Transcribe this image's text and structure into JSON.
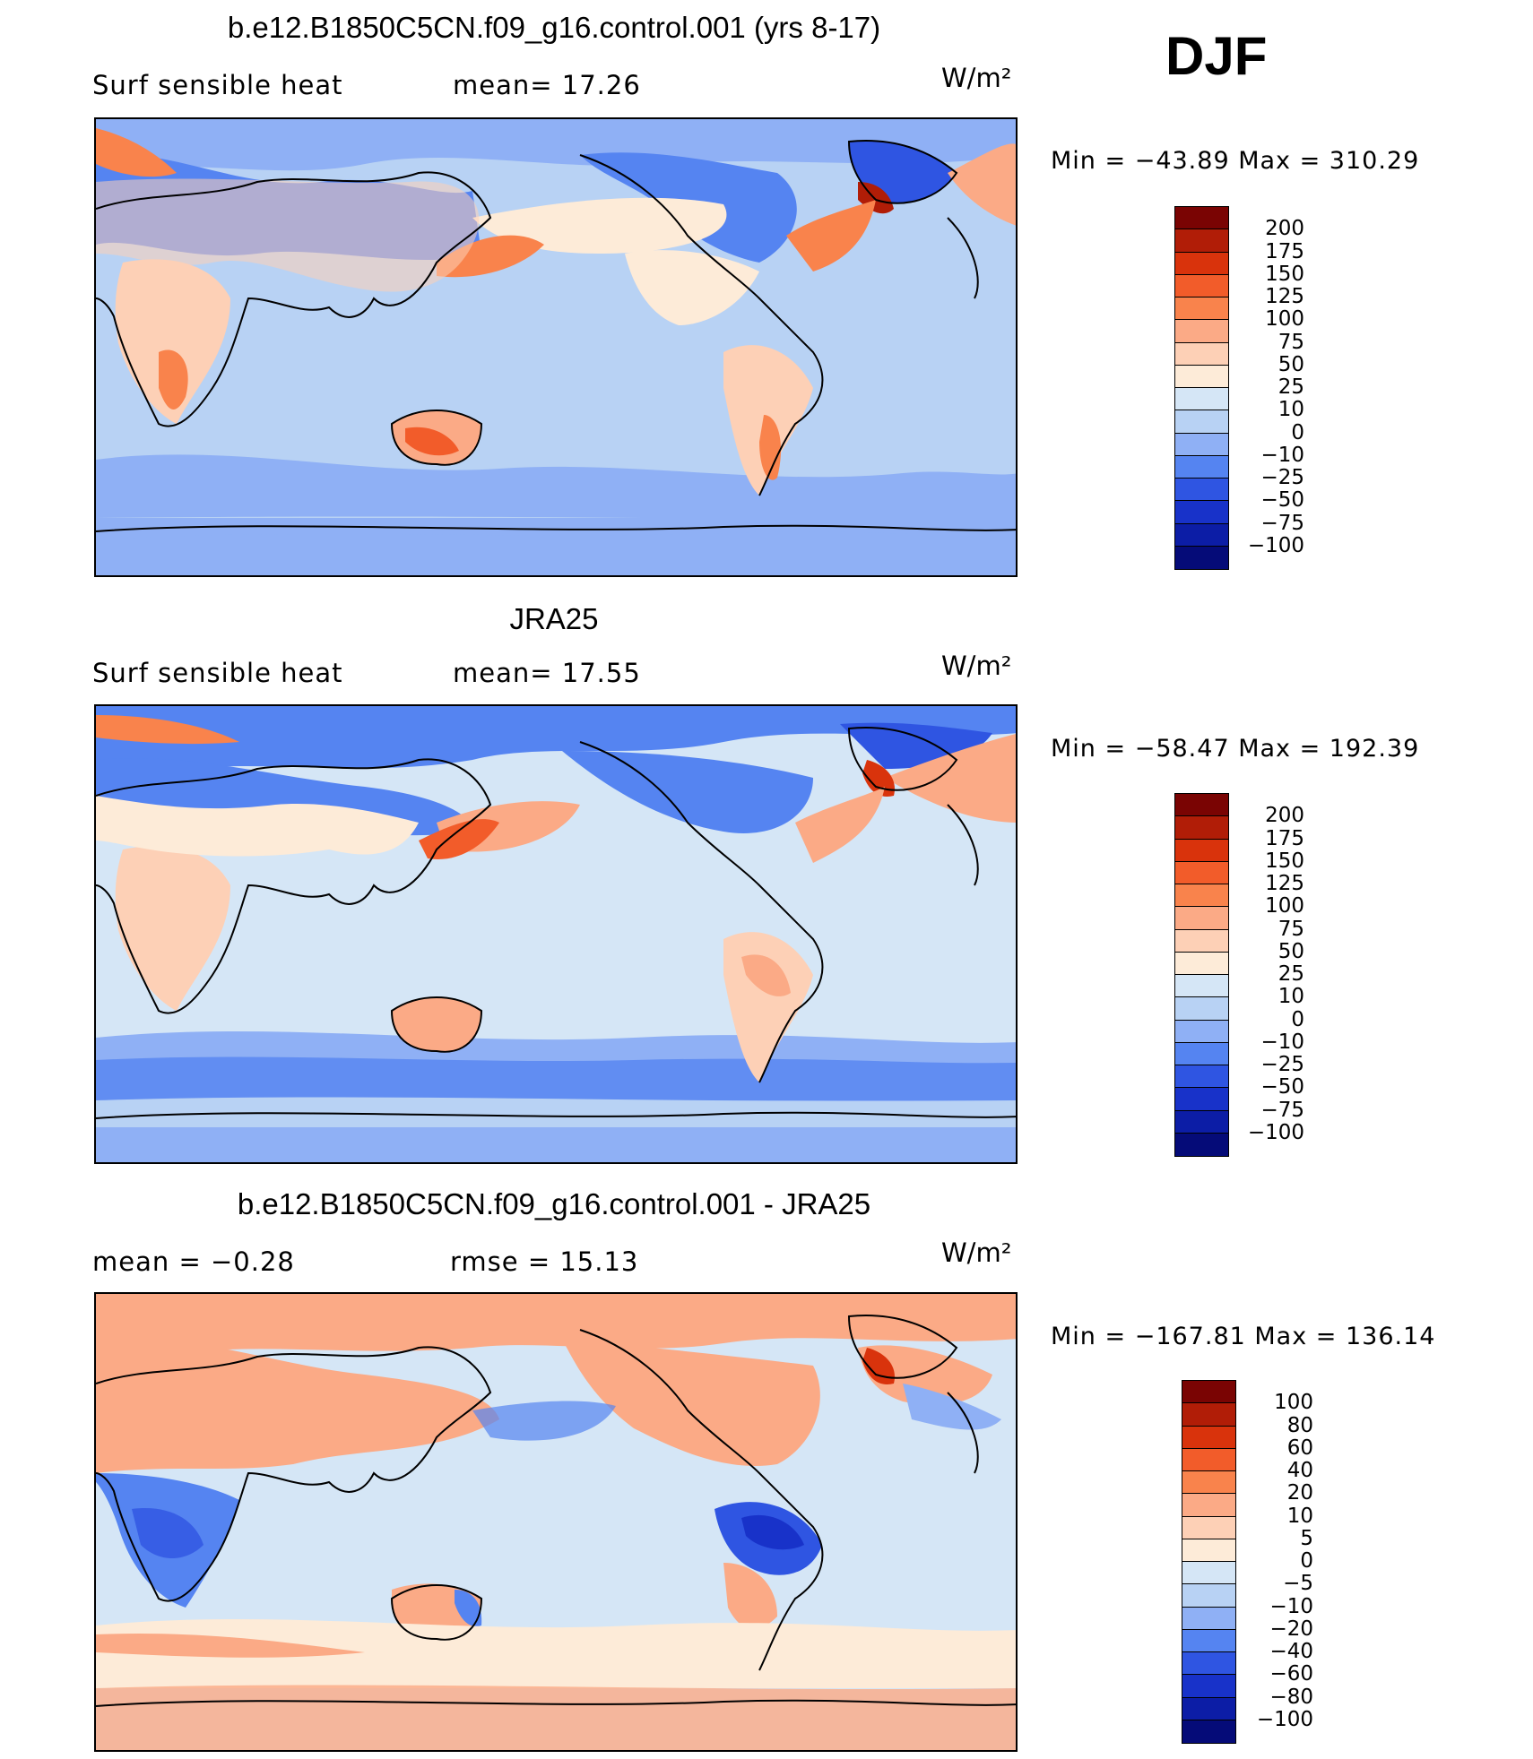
{
  "season": "DJF",
  "panels": [
    {
      "title": "b.e12.B1850C5CN.f09_g16.control.001 (yrs 8-17)",
      "left_label": "Surf  sensible  heat",
      "mid_label": "mean=   17.26",
      "units": "W/m²",
      "minmax": "Min  =  −43.89  Max  =  310.29",
      "colorbar": {
        "labels": [
          "200",
          "175",
          "150",
          "125",
          "100",
          "75",
          "50",
          "25",
          "10",
          "0",
          "−10",
          "−25",
          "−50",
          "−75",
          "−100"
        ],
        "colors": [
          "#7a0403",
          "#b11d07",
          "#d9330c",
          "#f25c2a",
          "#f9834c",
          "#fbaa86",
          "#fdd0b6",
          "#fdebd8",
          "#d5e6f6",
          "#b8d2f4",
          "#8fb0f5",
          "#5584f1",
          "#2f55e2",
          "#1832c9",
          "#0c1da6",
          "#050b78"
        ]
      }
    },
    {
      "title": "JRA25",
      "left_label": "Surf  sensible  heat",
      "mid_label": "mean=   17.55",
      "units": "W/m²",
      "minmax": "Min  =  −58.47  Max  =  192.39",
      "colorbar": {
        "labels": [
          "200",
          "175",
          "150",
          "125",
          "100",
          "75",
          "50",
          "25",
          "10",
          "0",
          "−10",
          "−25",
          "−50",
          "−75",
          "−100"
        ],
        "colors": [
          "#7a0403",
          "#b11d07",
          "#d9330c",
          "#f25c2a",
          "#f9834c",
          "#fbaa86",
          "#fdd0b6",
          "#fdebd8",
          "#d5e6f6",
          "#b8d2f4",
          "#8fb0f5",
          "#5584f1",
          "#2f55e2",
          "#1832c9",
          "#0c1da6",
          "#050b78"
        ]
      }
    },
    {
      "title": "b.e12.B1850C5CN.f09_g16.control.001 - JRA25",
      "left_label": "mean =    −0.28",
      "mid_label": "rmse =    15.13",
      "units": "W/m²",
      "minmax": "Min  =  −167.81  Max  =  136.14",
      "colorbar": {
        "labels": [
          "100",
          "80",
          "60",
          "40",
          "20",
          "10",
          "5",
          "0",
          "−5",
          "−10",
          "−20",
          "−40",
          "−60",
          "−80",
          "−100"
        ],
        "colors": [
          "#7a0403",
          "#b11d07",
          "#d9330c",
          "#f25c2a",
          "#f9834c",
          "#fbaa86",
          "#fdd0b6",
          "#fdebd8",
          "#d5e6f6",
          "#b8d2f4",
          "#8fb0f5",
          "#5584f1",
          "#2f55e2",
          "#1832c9",
          "#0c1da6",
          "#050b78"
        ]
      }
    }
  ]
}
